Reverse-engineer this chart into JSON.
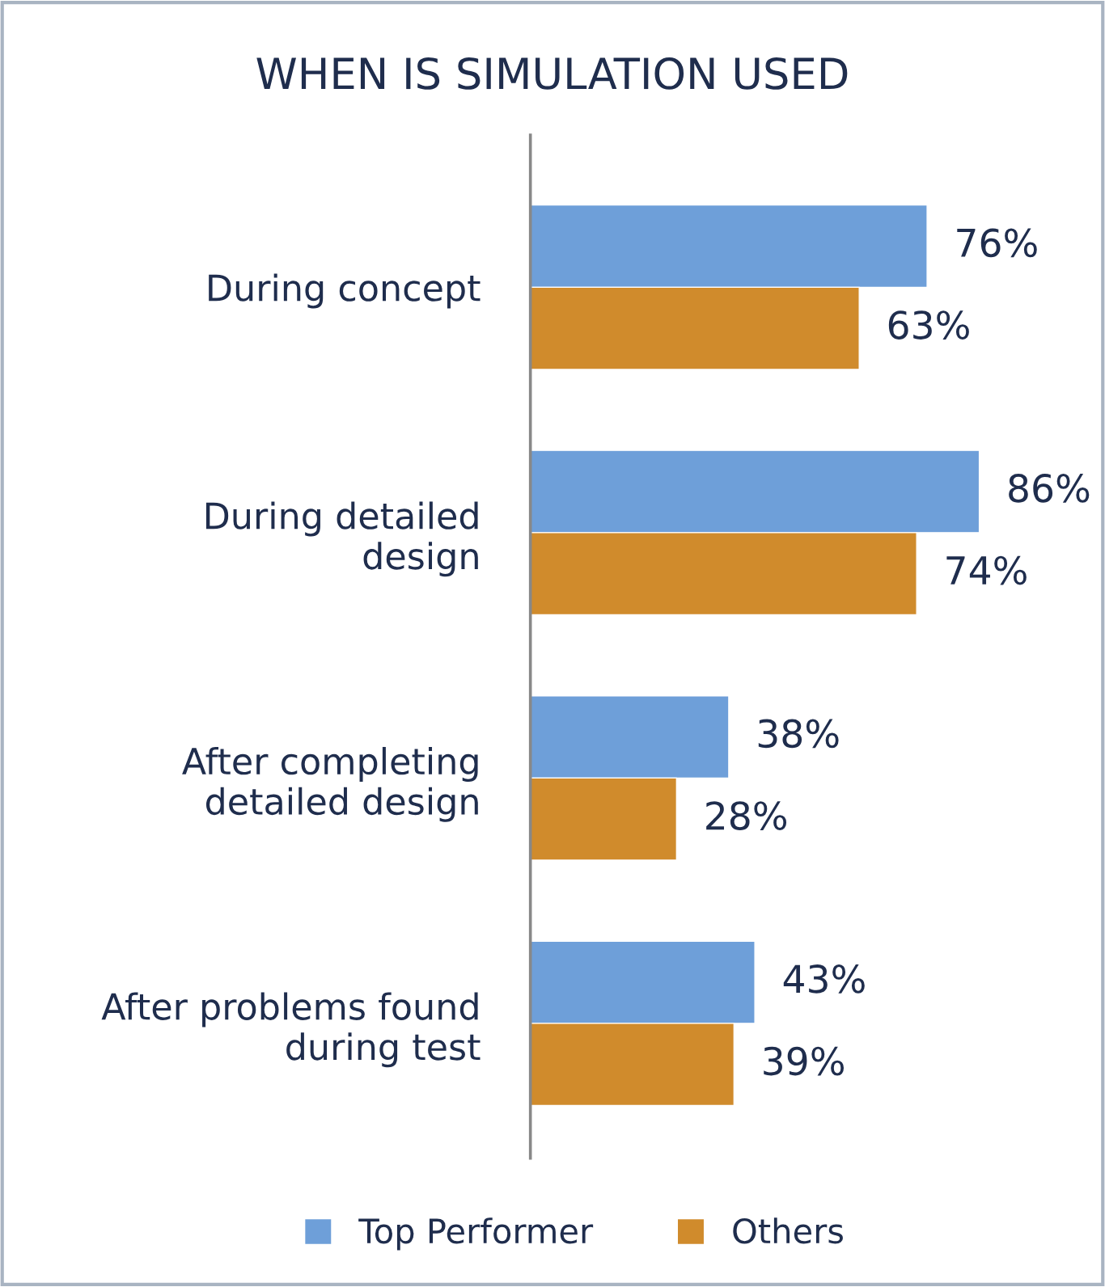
{
  "chart_data": {
    "type": "bar",
    "orientation": "horizontal",
    "title": "WHEN IS SIMULATION USED",
    "categories": [
      "During concept",
      "During detailed\ndesign",
      "After completing\ndetailed design",
      "After problems found\nduring test"
    ],
    "series": [
      {
        "name": "Top Performer",
        "color": "#6e9fd9",
        "values": [
          76,
          86,
          38,
          43
        ],
        "value_labels": [
          "76%",
          "86%",
          "38%",
          "43%"
        ]
      },
      {
        "name": "Others",
        "color": "#d08b2c",
        "values": [
          63,
          74,
          28,
          39
        ],
        "value_labels": [
          "63%",
          "74%",
          "28%",
          "39%"
        ]
      }
    ],
    "legend": "bottom",
    "grid": false,
    "tick_labels": "y"
  }
}
